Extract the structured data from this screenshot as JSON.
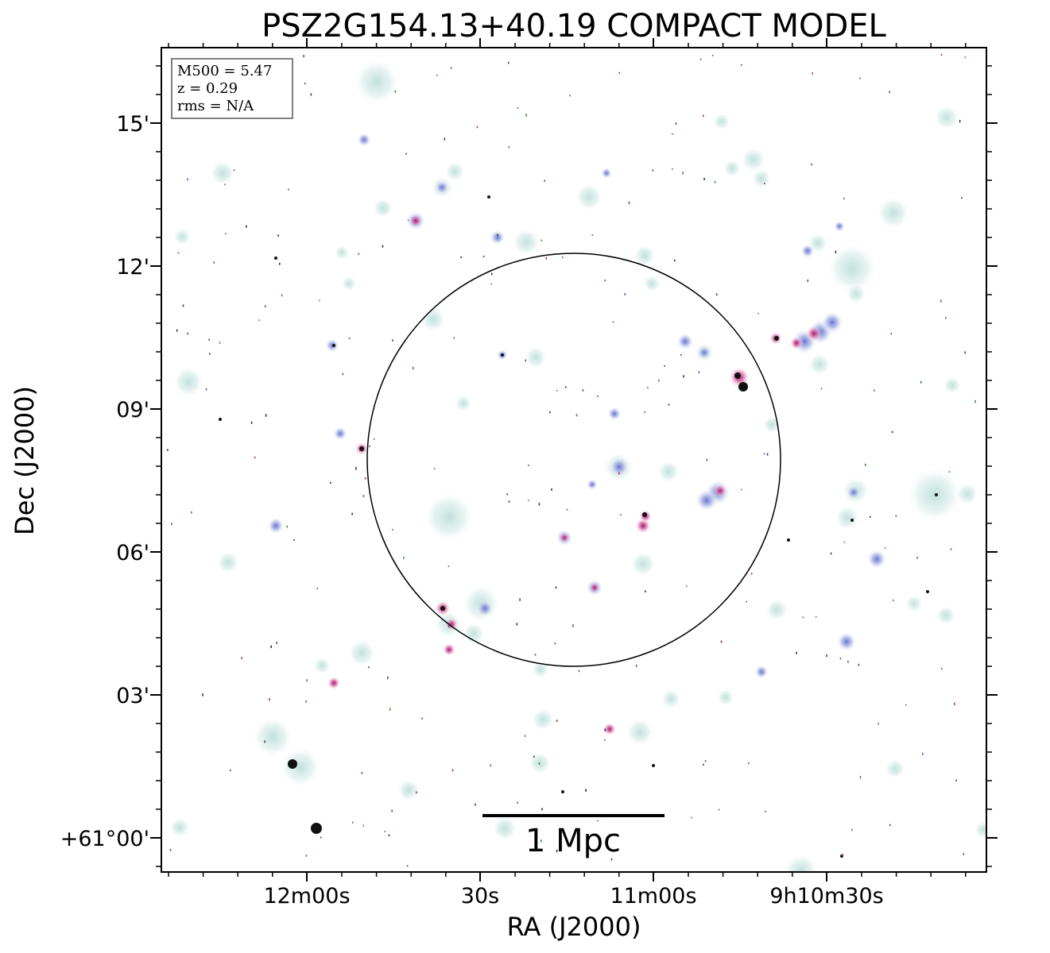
{
  "title": "PSZ2G154.13+40.19 COMPACT MODEL",
  "x_axis": {
    "label": "RA (J2000)",
    "major_ticks": [
      "12m00s",
      "30s",
      "11m00s",
      "9h10m30s"
    ]
  },
  "y_axis": {
    "label": "Dec (J2000)",
    "major_ticks": [
      "15'",
      "12'",
      "09'",
      "06'",
      "03'",
      "+61°00'"
    ]
  },
  "info_box": {
    "mass": "M500 = 5.47",
    "redshift": "z = 0.29",
    "rms": "rms = N/A"
  },
  "scale_bar": {
    "label": "1 Mpc"
  },
  "colors": {
    "background": "#ffffff",
    "halo": "#cfe8e4",
    "core_blue": "#7f86d8",
    "core_pink": "#d24f9a",
    "core_dark": "#111111"
  }
}
